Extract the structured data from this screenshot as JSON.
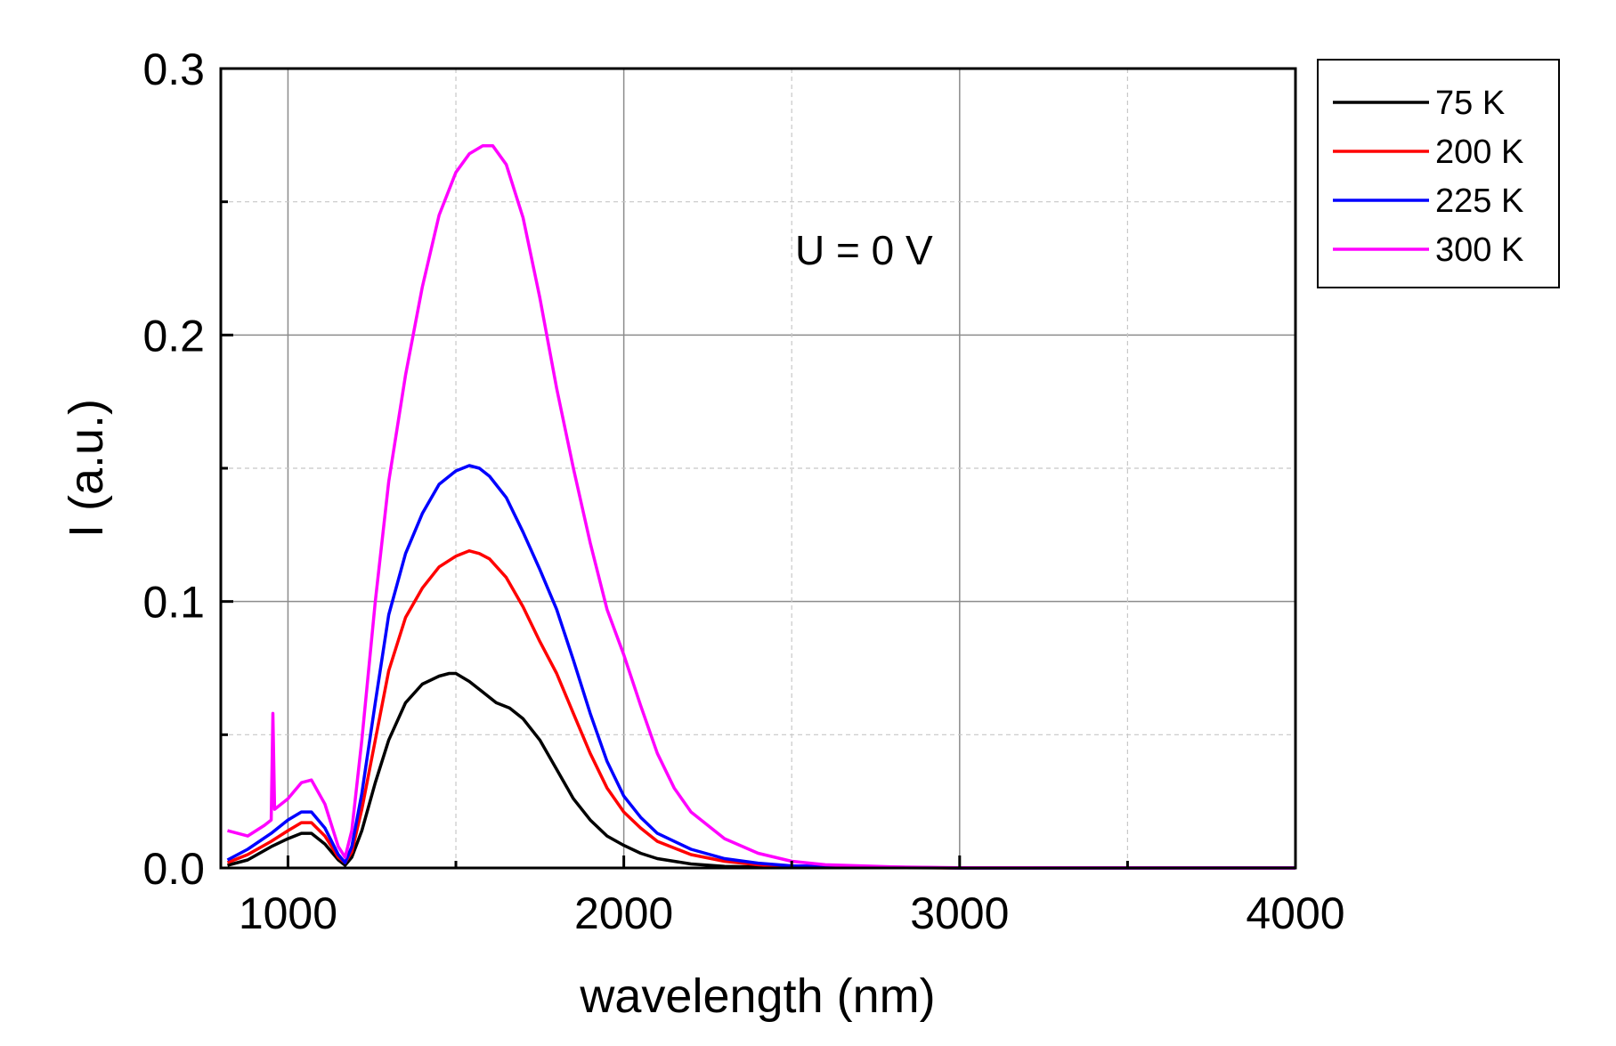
{
  "chart_data": {
    "type": "line",
    "title": "",
    "xlabel": "wavelength (nm)",
    "ylabel": "I (a.u.)",
    "xlim": [
      800,
      4000
    ],
    "ylim": [
      0,
      0.3
    ],
    "x_ticks": [
      1000,
      2000,
      3000,
      4000
    ],
    "x_tick_labels": [
      "1000",
      "2000",
      "3000",
      "4000"
    ],
    "x_minor_ticks": [
      1500,
      2500,
      3500
    ],
    "y_ticks": [
      0.0,
      0.1,
      0.2,
      0.3
    ],
    "y_tick_labels": [
      "0.0",
      "0.1",
      "0.2",
      "0.3"
    ],
    "y_minor_ticks": [
      0.05,
      0.15,
      0.25
    ],
    "grid": true,
    "legend_position": "top-right, outside plot area",
    "annotation": "U = 0 V",
    "series": [
      {
        "name": "75 K",
        "color": "#000000",
        "points": [
          [
            820,
            0.001
          ],
          [
            880,
            0.003
          ],
          [
            950,
            0.008
          ],
          [
            1000,
            0.011
          ],
          [
            1040,
            0.013
          ],
          [
            1070,
            0.013
          ],
          [
            1110,
            0.009
          ],
          [
            1150,
            0.003
          ],
          [
            1170,
            0.001
          ],
          [
            1190,
            0.004
          ],
          [
            1220,
            0.014
          ],
          [
            1260,
            0.032
          ],
          [
            1300,
            0.048
          ],
          [
            1350,
            0.062
          ],
          [
            1400,
            0.069
          ],
          [
            1450,
            0.072
          ],
          [
            1480,
            0.073
          ],
          [
            1500,
            0.073
          ],
          [
            1540,
            0.07
          ],
          [
            1580,
            0.066
          ],
          [
            1620,
            0.062
          ],
          [
            1660,
            0.06
          ],
          [
            1700,
            0.056
          ],
          [
            1750,
            0.048
          ],
          [
            1800,
            0.037
          ],
          [
            1850,
            0.026
          ],
          [
            1900,
            0.018
          ],
          [
            1950,
            0.012
          ],
          [
            2000,
            0.0085
          ],
          [
            2050,
            0.0055
          ],
          [
            2100,
            0.0035
          ],
          [
            2200,
            0.0015
          ],
          [
            2300,
            0.0006
          ],
          [
            2500,
            0.0002
          ],
          [
            3000,
            0.0
          ],
          [
            4000,
            0.0
          ]
        ]
      },
      {
        "name": "200 K",
        "color": "#ff0000",
        "points": [
          [
            820,
            0.002
          ],
          [
            880,
            0.005
          ],
          [
            950,
            0.01
          ],
          [
            1000,
            0.014
          ],
          [
            1040,
            0.017
          ],
          [
            1070,
            0.017
          ],
          [
            1110,
            0.012
          ],
          [
            1150,
            0.004
          ],
          [
            1170,
            0.002
          ],
          [
            1190,
            0.006
          ],
          [
            1220,
            0.022
          ],
          [
            1260,
            0.048
          ],
          [
            1300,
            0.074
          ],
          [
            1350,
            0.094
          ],
          [
            1400,
            0.105
          ],
          [
            1450,
            0.113
          ],
          [
            1500,
            0.117
          ],
          [
            1540,
            0.119
          ],
          [
            1570,
            0.118
          ],
          [
            1600,
            0.116
          ],
          [
            1650,
            0.109
          ],
          [
            1700,
            0.098
          ],
          [
            1750,
            0.085
          ],
          [
            1800,
            0.073
          ],
          [
            1850,
            0.058
          ],
          [
            1900,
            0.043
          ],
          [
            1950,
            0.03
          ],
          [
            2000,
            0.021
          ],
          [
            2050,
            0.015
          ],
          [
            2100,
            0.01
          ],
          [
            2200,
            0.005
          ],
          [
            2300,
            0.0025
          ],
          [
            2400,
            0.0012
          ],
          [
            2500,
            0.0005
          ],
          [
            3000,
            0.0
          ],
          [
            4000,
            0.0
          ]
        ]
      },
      {
        "name": "225 K",
        "color": "#0000ff",
        "points": [
          [
            820,
            0.003
          ],
          [
            880,
            0.007
          ],
          [
            950,
            0.013
          ],
          [
            1000,
            0.018
          ],
          [
            1040,
            0.021
          ],
          [
            1070,
            0.021
          ],
          [
            1110,
            0.015
          ],
          [
            1150,
            0.005
          ],
          [
            1170,
            0.002
          ],
          [
            1190,
            0.008
          ],
          [
            1220,
            0.028
          ],
          [
            1260,
            0.062
          ],
          [
            1300,
            0.095
          ],
          [
            1350,
            0.118
          ],
          [
            1400,
            0.133
          ],
          [
            1450,
            0.144
          ],
          [
            1500,
            0.149
          ],
          [
            1540,
            0.151
          ],
          [
            1570,
            0.15
          ],
          [
            1600,
            0.147
          ],
          [
            1650,
            0.139
          ],
          [
            1700,
            0.126
          ],
          [
            1750,
            0.112
          ],
          [
            1800,
            0.097
          ],
          [
            1850,
            0.078
          ],
          [
            1900,
            0.058
          ],
          [
            1950,
            0.04
          ],
          [
            2000,
            0.027
          ],
          [
            2050,
            0.019
          ],
          [
            2100,
            0.013
          ],
          [
            2200,
            0.007
          ],
          [
            2300,
            0.0035
          ],
          [
            2400,
            0.0018
          ],
          [
            2500,
            0.0008
          ],
          [
            3000,
            0.0
          ],
          [
            4000,
            0.0
          ]
        ]
      },
      {
        "name": "300 K",
        "color": "#ff00ff",
        "points": [
          [
            820,
            0.014
          ],
          [
            880,
            0.012
          ],
          [
            930,
            0.016
          ],
          [
            950,
            0.018
          ],
          [
            955,
            0.058
          ],
          [
            960,
            0.022
          ],
          [
            1000,
            0.026
          ],
          [
            1040,
            0.032
          ],
          [
            1070,
            0.033
          ],
          [
            1110,
            0.024
          ],
          [
            1150,
            0.008
          ],
          [
            1170,
            0.004
          ],
          [
            1190,
            0.014
          ],
          [
            1220,
            0.048
          ],
          [
            1260,
            0.1
          ],
          [
            1300,
            0.145
          ],
          [
            1350,
            0.185
          ],
          [
            1400,
            0.218
          ],
          [
            1450,
            0.245
          ],
          [
            1500,
            0.261
          ],
          [
            1540,
            0.268
          ],
          [
            1580,
            0.271
          ],
          [
            1610,
            0.271
          ],
          [
            1650,
            0.264
          ],
          [
            1700,
            0.244
          ],
          [
            1750,
            0.214
          ],
          [
            1800,
            0.18
          ],
          [
            1850,
            0.15
          ],
          [
            1900,
            0.122
          ],
          [
            1950,
            0.097
          ],
          [
            2000,
            0.08
          ],
          [
            2050,
            0.061
          ],
          [
            2100,
            0.043
          ],
          [
            2150,
            0.03
          ],
          [
            2200,
            0.021
          ],
          [
            2300,
            0.011
          ],
          [
            2400,
            0.0055
          ],
          [
            2500,
            0.0025
          ],
          [
            2600,
            0.0012
          ],
          [
            2800,
            0.0004
          ],
          [
            3000,
            0.0001
          ],
          [
            4000,
            0.0
          ]
        ]
      }
    ]
  }
}
